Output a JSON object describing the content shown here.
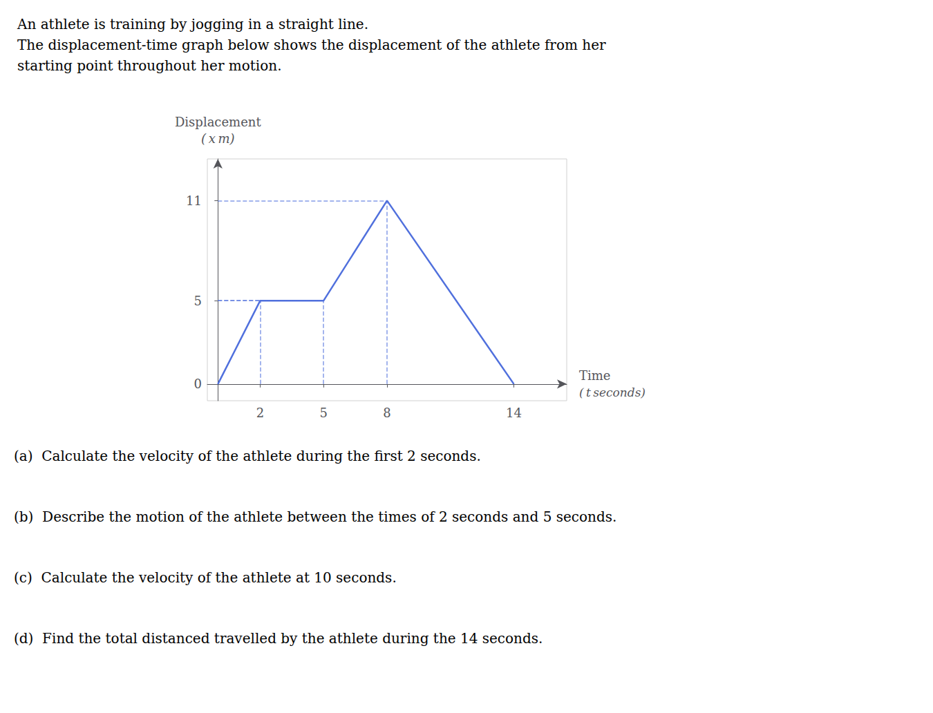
{
  "chart_data": {
    "type": "line",
    "title": [
      "An athlete is training by jogging in a straight line.",
      "The displacement-time graph below shows the displacement of the athlete from her",
      "starting point throughout her motion."
    ],
    "xlabel": [
      "Time",
      "( t seconds)"
    ],
    "ylabel": [
      "Displacement",
      "( x m)"
    ],
    "x": [
      0,
      2,
      5,
      8,
      14
    ],
    "values": [
      0,
      5,
      5,
      11,
      0
    ],
    "xlim": [
      -0.5,
      16.5
    ],
    "ylim": [
      -1.0,
      13.5
    ],
    "xticks": [
      2,
      5,
      8,
      14
    ],
    "yticks": [
      0,
      5,
      11
    ],
    "grid": false,
    "annotations": [
      "(a)  Calculate the velocity of the athlete during the first 2 seconds.",
      "(b)  Describe the motion of the athlete between the times of 2 seconds and 5 seconds.",
      "(c)  Calculate the velocity of the athlete at 10 seconds.",
      "(d)  Find the total distanced travelled by the athlete during the 14 seconds."
    ]
  }
}
